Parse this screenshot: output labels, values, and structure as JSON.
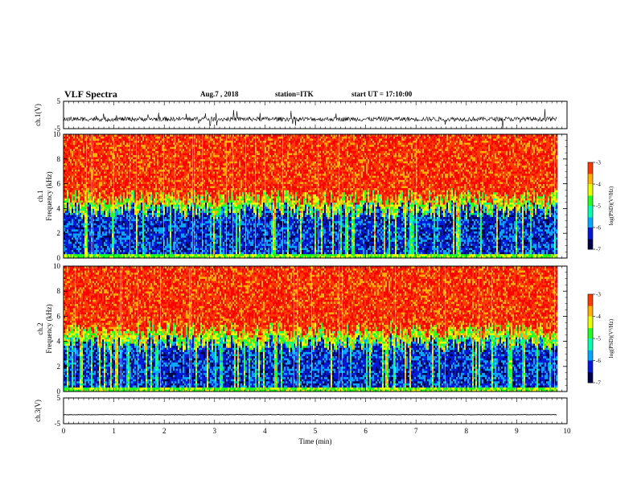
{
  "header": {
    "title": "VLF Spectra",
    "date": "Aug.7 , 2018",
    "station": "station=ITK",
    "start": "start UT =  17:10:00"
  },
  "chart_data": [
    {
      "type": "line",
      "id": "ch1-waveform",
      "ylabel": "ch.1(V)",
      "ylim": [
        -5,
        5
      ],
      "yticks": [
        5,
        -5
      ],
      "xlim": [
        0,
        10
      ],
      "series": [
        {
          "x": [
            0,
            9.8
          ],
          "y": [
            -1.5,
            -1.5
          ],
          "color": "#000000"
        }
      ]
    },
    {
      "type": "heatmap",
      "id": "ch1-spectrogram",
      "ylabel_line1": "ch.1",
      "ylabel_line2": "Frequency (kHz)",
      "ylim": [
        0,
        10
      ],
      "yticks": [
        "0",
        "2",
        "4",
        "6",
        "8",
        "10"
      ],
      "xlim": [
        0,
        10
      ],
      "data_end": 9.8,
      "colorbar": {
        "label": "log(PSD)(V²/Hz)",
        "range": [
          -7,
          -3
        ],
        "ticks": [
          "-3",
          "-4",
          "-5",
          "-6",
          "-7"
        ]
      }
    },
    {
      "type": "heatmap",
      "id": "ch2-spectrogram",
      "ylabel_line1": "ch.2",
      "ylabel_line2": "Frequency (kHz)",
      "ylim": [
        0,
        10
      ],
      "yticks": [
        "0",
        "2",
        "4",
        "6",
        "8",
        "10"
      ],
      "xlim": [
        0,
        10
      ],
      "data_end": 9.8,
      "colorbar": {
        "label": "log(PSD)(V²/Hz)",
        "range": [
          -7,
          -3
        ],
        "ticks": [
          "-3",
          "-4",
          "-5",
          "-6",
          "-7"
        ]
      }
    },
    {
      "type": "line",
      "id": "ch3-waveform",
      "ylabel": "ch.3(V)",
      "ylim": [
        -5,
        5
      ],
      "yticks": [
        "5",
        "-5"
      ],
      "xlim": [
        0,
        10
      ],
      "xlabel": "Time (min)",
      "xticks": [
        "0",
        "1",
        "2",
        "3",
        "4",
        "5",
        "6",
        "7",
        "8",
        "9",
        "10"
      ],
      "series": [
        {
          "x": [
            0,
            9.8
          ],
          "y": [
            -1.5,
            -1.5
          ],
          "color": "#000000"
        }
      ]
    }
  ],
  "colors": {
    "background": "#ffffff",
    "axis": "#000000",
    "trace": "#000000"
  },
  "colormap": [
    "#00004a",
    "#0018d8",
    "#00a8ff",
    "#00ffb0",
    "#20ff20",
    "#e8ff00",
    "#ffb000",
    "#ff3a00",
    "#ff0000"
  ]
}
